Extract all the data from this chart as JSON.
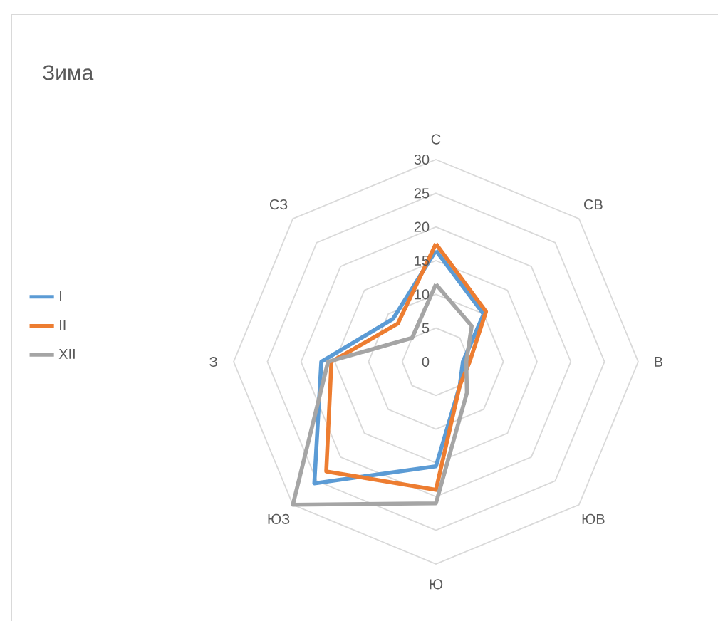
{
  "chart_data": {
    "type": "radar",
    "title": "Зима",
    "categories": [
      "С",
      "СВ",
      "В",
      "ЮВ",
      "Ю",
      "ЮЗ",
      "З",
      "СЗ"
    ],
    "series": [
      {
        "name": "I",
        "color": "#5b9bd5",
        "values": [
          16.5,
          10,
          4,
          5,
          15.5,
          25.5,
          17,
          9
        ]
      },
      {
        "name": "II",
        "color": "#ed7d31",
        "values": [
          17.5,
          10.5,
          5,
          5,
          19,
          23,
          15.5,
          8
        ]
      },
      {
        "name": "XII",
        "color": "#a5a5a5",
        "values": [
          11.5,
          7.5,
          4.5,
          6.5,
          21,
          30,
          16,
          5
        ]
      }
    ],
    "ylim": [
      0,
      30
    ],
    "yticks": [
      0,
      5,
      10,
      15,
      20,
      25,
      30
    ],
    "grid": true,
    "legend": "left"
  }
}
